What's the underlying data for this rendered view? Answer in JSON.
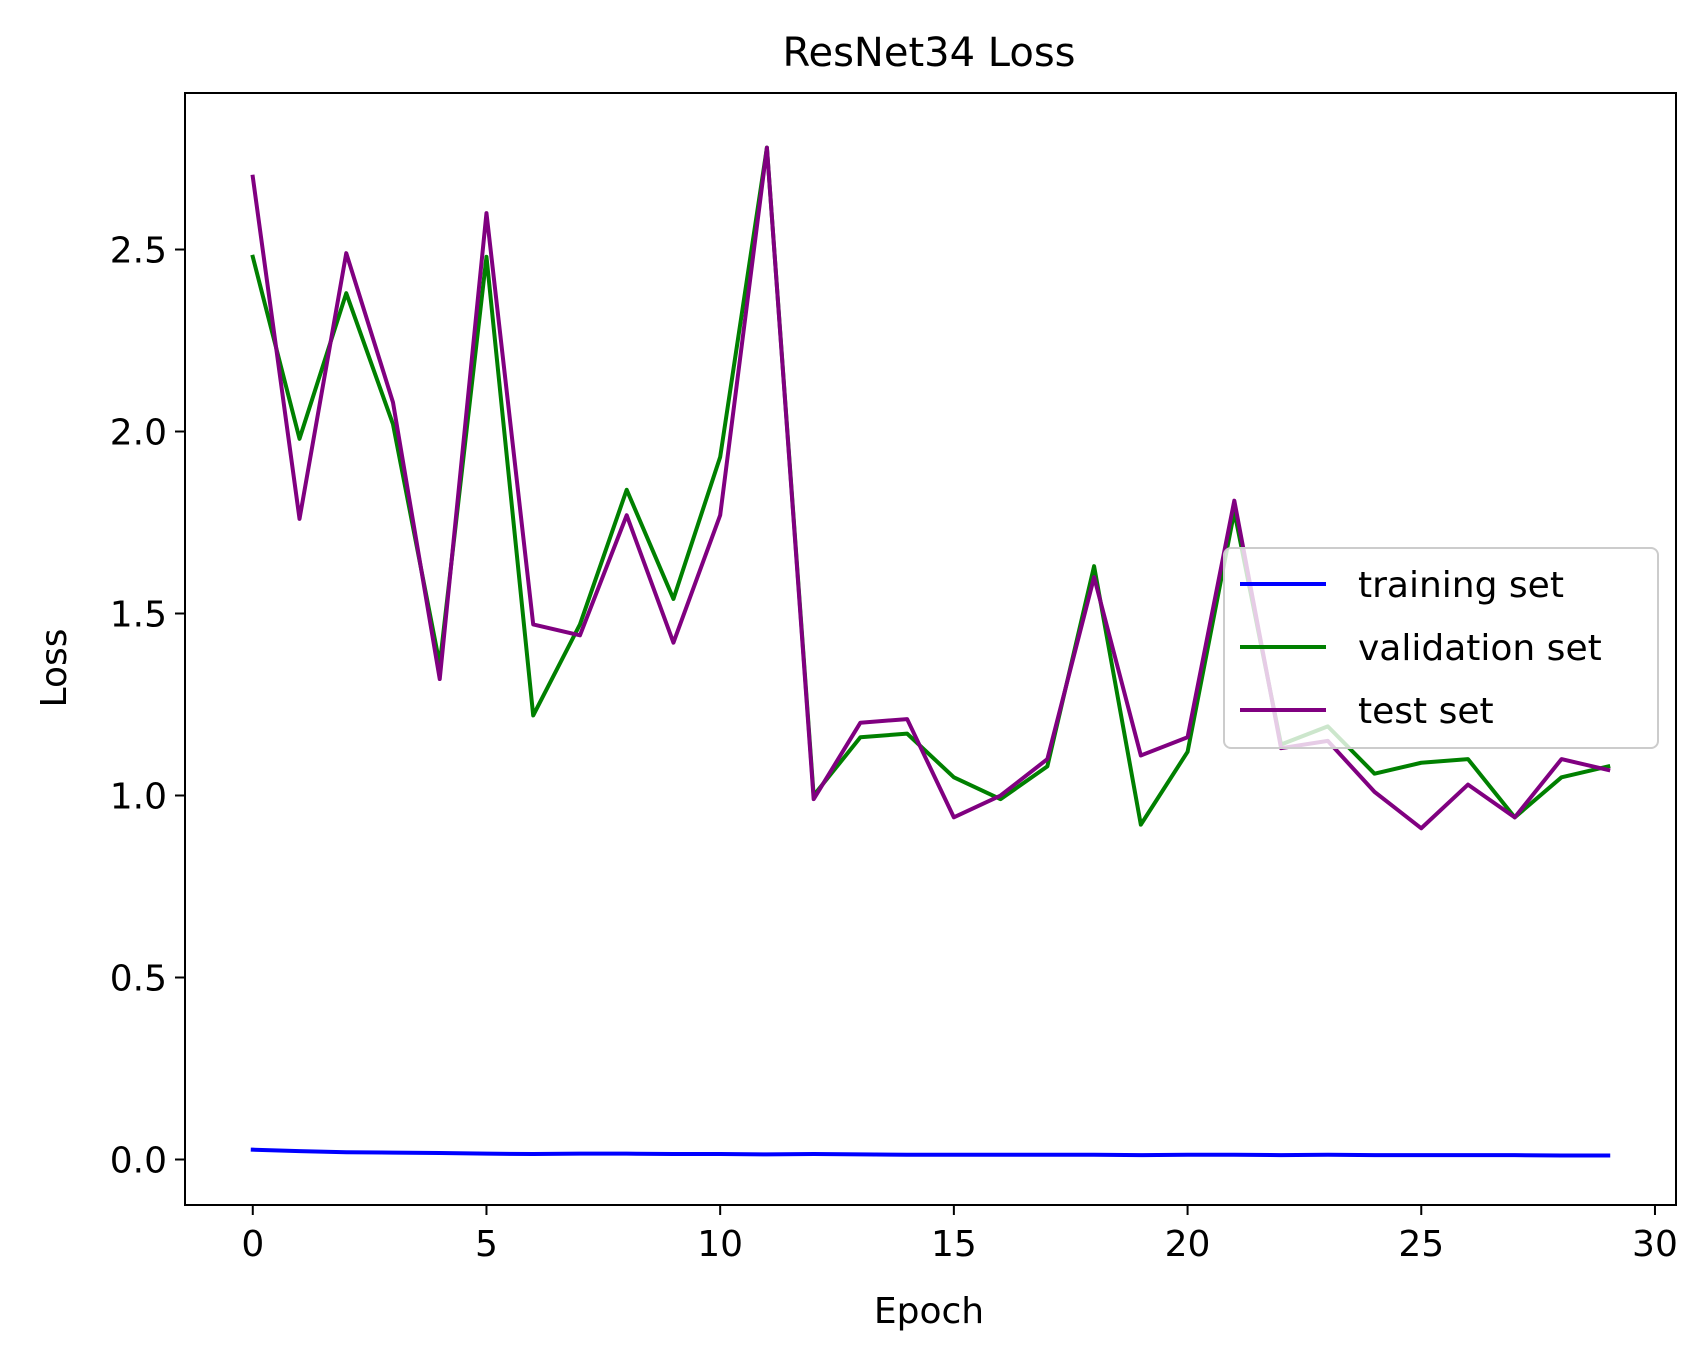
{
  "chart_data": {
    "type": "line",
    "title": "ResNet34 Loss",
    "xlabel": "Epoch",
    "ylabel": "Loss",
    "xlim": [
      -1.45,
      30.45
    ],
    "ylim": [
      -0.125,
      2.93
    ],
    "xticks": [
      0,
      5,
      10,
      15,
      20,
      25,
      30
    ],
    "xtick_labels": [
      "0",
      "5",
      "10",
      "15",
      "20",
      "25",
      "30"
    ],
    "yticks": [
      0.0,
      0.5,
      1.0,
      1.5,
      2.0,
      2.5
    ],
    "ytick_labels": [
      "0.0",
      "0.5",
      "1.0",
      "1.5",
      "2.0",
      "2.5"
    ],
    "grid": false,
    "legend_position": "center-right",
    "x": [
      0,
      1,
      2,
      3,
      4,
      5,
      6,
      7,
      8,
      9,
      10,
      11,
      12,
      13,
      14,
      15,
      16,
      17,
      18,
      19,
      20,
      21,
      22,
      23,
      24,
      25,
      26,
      27,
      28,
      29
    ],
    "series": [
      {
        "name": "training set",
        "color": "#0000ff",
        "values": [
          0.027,
          0.023,
          0.02,
          0.019,
          0.018,
          0.016,
          0.015,
          0.016,
          0.016,
          0.015,
          0.015,
          0.014,
          0.015,
          0.014,
          0.013,
          0.013,
          0.013,
          0.013,
          0.013,
          0.012,
          0.013,
          0.013,
          0.012,
          0.013,
          0.012,
          0.012,
          0.012,
          0.012,
          0.011,
          0.011
        ]
      },
      {
        "name": "validation set",
        "color": "#008000",
        "values": [
          2.48,
          1.98,
          2.38,
          2.02,
          1.36,
          2.48,
          1.22,
          1.47,
          1.84,
          1.54,
          1.93,
          2.78,
          1.0,
          1.16,
          1.17,
          1.05,
          0.99,
          1.08,
          1.63,
          0.92,
          1.12,
          1.78,
          1.14,
          1.19,
          1.06,
          1.09,
          1.1,
          0.94,
          1.05,
          1.08
        ]
      },
      {
        "name": "test set",
        "color": "#800080",
        "values": [
          2.7,
          1.76,
          2.49,
          2.08,
          1.32,
          2.6,
          1.47,
          1.44,
          1.77,
          1.42,
          1.77,
          2.78,
          0.99,
          1.2,
          1.21,
          0.94,
          1.0,
          1.1,
          1.6,
          1.11,
          1.16,
          1.81,
          1.13,
          1.15,
          1.01,
          0.91,
          1.03,
          0.94,
          1.1,
          1.07
        ]
      }
    ]
  }
}
